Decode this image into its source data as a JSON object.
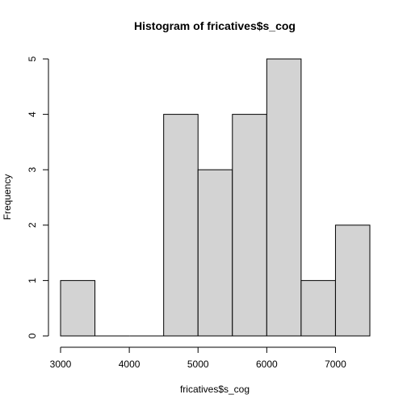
{
  "chart_data": {
    "type": "bar",
    "title": "Histogram of fricatives$s_cog",
    "xlabel": "fricatives$s_cog",
    "ylabel": "Frequency",
    "bins": [
      {
        "start": 3000,
        "end": 3500,
        "count": 1
      },
      {
        "start": 3500,
        "end": 4000,
        "count": 0
      },
      {
        "start": 4000,
        "end": 4500,
        "count": 0
      },
      {
        "start": 4500,
        "end": 5000,
        "count": 4
      },
      {
        "start": 5000,
        "end": 5500,
        "count": 3
      },
      {
        "start": 5500,
        "end": 6000,
        "count": 4
      },
      {
        "start": 6000,
        "end": 6500,
        "count": 5
      },
      {
        "start": 6500,
        "end": 7000,
        "count": 1
      },
      {
        "start": 7000,
        "end": 7500,
        "count": 2
      }
    ],
    "xlim": [
      3000,
      7500
    ],
    "ylim": [
      0,
      5
    ],
    "xticks": [
      3000,
      4000,
      5000,
      6000,
      7000
    ],
    "yticks": [
      0,
      1,
      2,
      3,
      4,
      5
    ],
    "grid": false,
    "bar_color": "#d3d3d3",
    "edge_color": "#000000"
  }
}
